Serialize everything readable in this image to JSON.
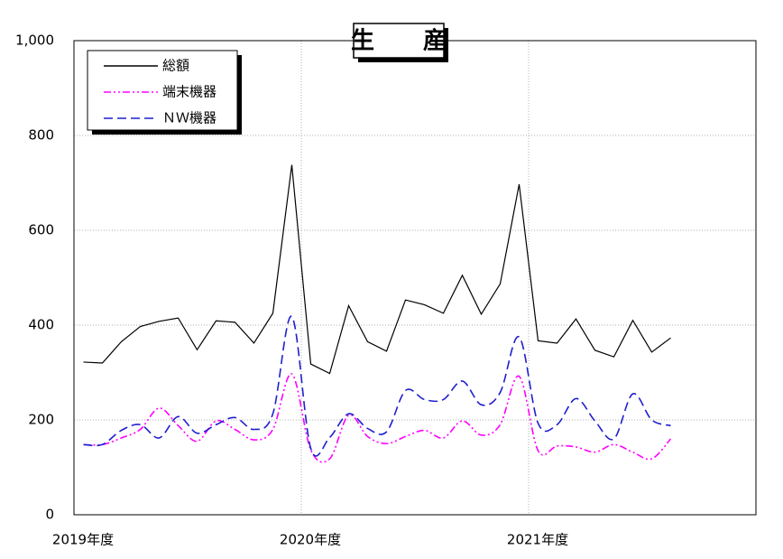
{
  "chart_data": {
    "type": "line",
    "title": "生　産",
    "x": [
      0.5,
      1.5,
      2.5,
      3.5,
      4.5,
      5.5,
      6.5,
      7.5,
      8.5,
      9.5,
      10.5,
      11.5,
      12.5,
      13.5,
      14.5,
      15.5,
      16.5,
      17.5,
      18.5,
      19.5,
      20.5,
      21.5,
      22.5,
      23.5,
      24.5,
      25.5,
      26.5,
      27.5,
      28.5,
      29.5,
      30.5,
      31.5
    ],
    "xlim": [
      0,
      36
    ],
    "xticks": [
      {
        "value": 0,
        "label": "2019年度"
      },
      {
        "value": 12,
        "label": "2020年度"
      },
      {
        "value": 24,
        "label": "2021年度"
      }
    ],
    "ylim": [
      0,
      1000
    ],
    "yticks": [
      0,
      200,
      400,
      600,
      800,
      {
        "value": 1000,
        "label": "1,000"
      }
    ],
    "grid": true,
    "legend": "upper left",
    "series": [
      {
        "name": "総額",
        "color": "#000000",
        "style": "solid",
        "values": [
          322,
          320,
          365,
          397,
          408,
          415,
          348,
          409,
          406,
          362,
          425,
          738,
          318,
          298,
          441,
          365,
          345,
          453,
          443,
          425,
          505,
          423,
          487,
          697,
          367,
          362,
          413,
          347,
          333,
          410,
          343,
          373
        ]
      },
      {
        "name": "端末機器",
        "color": "#ff00ff",
        "style": "dash-dot-dot",
        "values": [
          148,
          148,
          162,
          180,
          225,
          188,
          155,
          198,
          180,
          158,
          180,
          297,
          137,
          118,
          210,
          165,
          150,
          165,
          178,
          162,
          198,
          168,
          190,
          292,
          135,
          145,
          143,
          132,
          148,
          132,
          118,
          160
        ]
      },
      {
        "name": "ＮＷ機器",
        "color": "#1f1fcf",
        "style": "dashed",
        "values": [
          148,
          148,
          178,
          190,
          162,
          207,
          172,
          190,
          205,
          180,
          213,
          418,
          140,
          163,
          213,
          182,
          175,
          262,
          243,
          243,
          282,
          232,
          258,
          375,
          193,
          190,
          245,
          198,
          160,
          255,
          200,
          188
        ]
      }
    ]
  }
}
